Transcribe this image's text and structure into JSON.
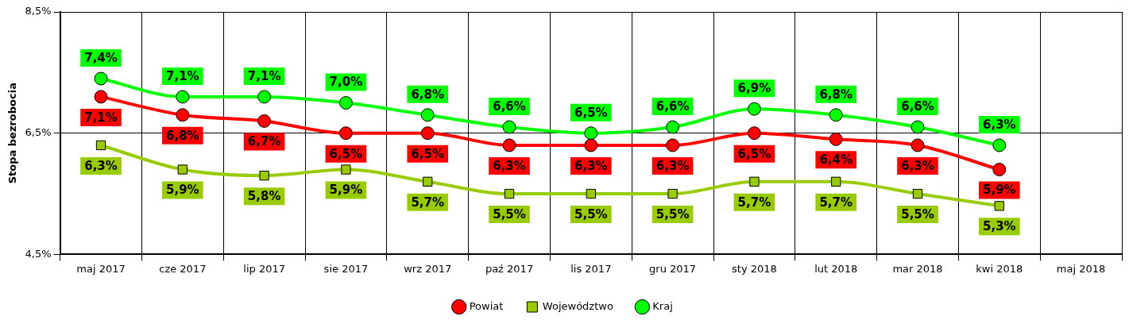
{
  "chart_data": {
    "type": "line",
    "ylabel": "Stopa bezrobocia",
    "categories": [
      "maj 2017",
      "cze 2017",
      "lip 2017",
      "sie 2017",
      "wrz 2017",
      "paź 2017",
      "lis 2017",
      "gru 2017",
      "sty 2018",
      "lut 2018",
      "mar 2018",
      "kwi 2018",
      "maj 2018"
    ],
    "ylim": [
      4.5,
      8.5
    ],
    "yticks": [
      {
        "value": 4.5,
        "label": "4,5%"
      },
      {
        "value": 6.5,
        "label": "6,5%"
      },
      {
        "value": 8.5,
        "label": "8,5%"
      }
    ],
    "grid": true,
    "legend": "bottom",
    "series": [
      {
        "name": "Powiat",
        "color": "#ff0000",
        "marker": "circle",
        "values": [
          7.1,
          6.8,
          6.7,
          6.5,
          6.5,
          6.3,
          6.3,
          6.3,
          6.5,
          6.4,
          6.3,
          5.9,
          null
        ],
        "value_labels": [
          "7,1%",
          "6,8%",
          "6,7%",
          "6,5%",
          "6,5%",
          "6,3%",
          "6,3%",
          "6,3%",
          "6,5%",
          "6,4%",
          "6,3%",
          "5,9%",
          null
        ]
      },
      {
        "name": "Województwo",
        "color": "#99cc00",
        "marker": "square",
        "values": [
          6.3,
          5.9,
          5.8,
          5.9,
          5.7,
          5.5,
          5.5,
          5.5,
          5.7,
          5.7,
          5.5,
          5.3,
          null
        ],
        "value_labels": [
          "6,3%",
          "5,9%",
          "5,8%",
          "5,9%",
          "5,7%",
          "5,5%",
          "5,5%",
          "5,5%",
          "5,7%",
          "5,7%",
          "5,5%",
          "5,3%",
          null
        ]
      },
      {
        "name": "Kraj",
        "color": "#00ff00",
        "marker": "circle",
        "values": [
          7.4,
          7.1,
          7.1,
          7.0,
          6.8,
          6.6,
          6.5,
          6.6,
          6.9,
          6.8,
          6.6,
          6.3,
          null
        ],
        "value_labels": [
          "7,4%",
          "7,1%",
          "7,1%",
          "7,0%",
          "6,8%",
          "6,6%",
          "6,5%",
          "6,6%",
          "6,9%",
          "6,8%",
          "6,6%",
          "6,3%",
          null
        ]
      }
    ]
  }
}
